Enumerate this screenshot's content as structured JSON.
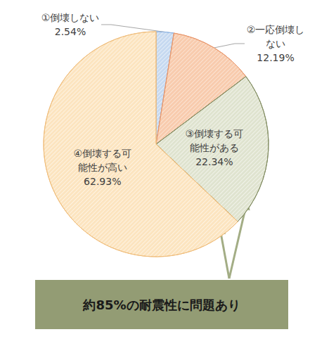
{
  "chart_data": {
    "type": "pie",
    "categories": [
      "①倒壊しない",
      "②一応倒壊しない",
      "③倒壊する可能性がある",
      "④倒壊する可能性が高い"
    ],
    "values": [
      2.54,
      12.19,
      22.34,
      62.93
    ],
    "value_labels": [
      "2.54%",
      "12.19%",
      "22.34%",
      "62.93%"
    ],
    "colors": [
      "#c6d9f0",
      "#f8cbad",
      "#dfe3cf",
      "#fce4bf"
    ],
    "data_labels": true,
    "annotation": "約85%の耐震性に問題あり"
  }
}
